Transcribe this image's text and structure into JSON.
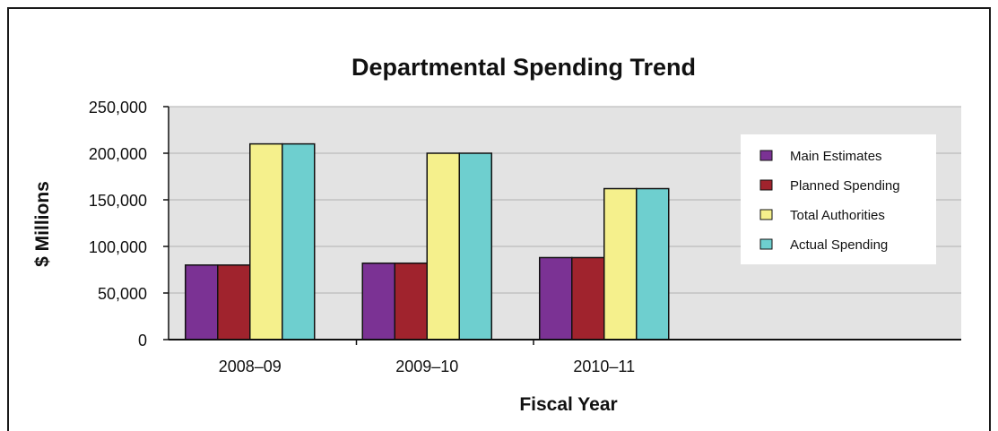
{
  "chart_data": {
    "type": "bar",
    "title": "Departmental Spending Trend",
    "xlabel": "Fiscal Year",
    "ylabel": "$ Millions",
    "categories": [
      "2008–09",
      "2009–10",
      "2010–11"
    ],
    "ylim": [
      0,
      250000
    ],
    "yticks": [
      "0",
      "50,000",
      "100,000",
      "150,000",
      "200,000",
      "250,000"
    ],
    "grid": true,
    "legend_position": "right",
    "series": [
      {
        "name": "Main Estimates",
        "color": "#7b3294",
        "values": [
          80000,
          82000,
          88000
        ]
      },
      {
        "name": "Planned Spending",
        "color": "#a0232d",
        "values": [
          80000,
          82000,
          88000
        ]
      },
      {
        "name": "Total Authorities",
        "color": "#f5f08c",
        "values": [
          210000,
          200000,
          162000
        ]
      },
      {
        "name": "Actual Spending",
        "color": "#6ecfcf",
        "values": [
          210000,
          200000,
          162000
        ]
      }
    ]
  }
}
